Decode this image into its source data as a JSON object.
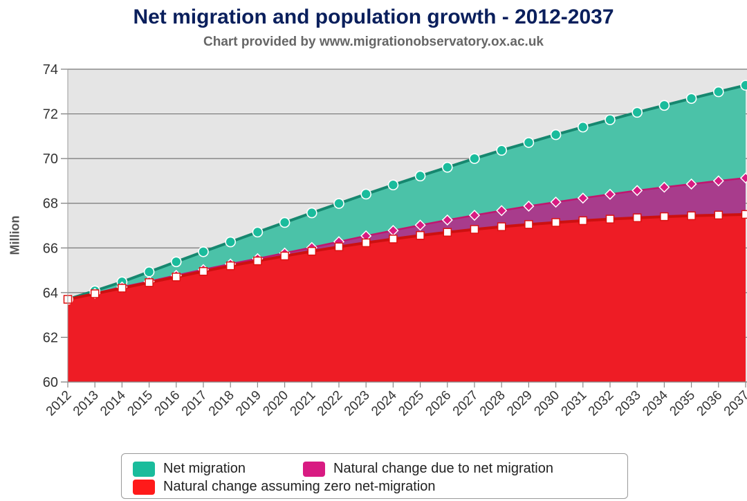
{
  "chart_data": {
    "type": "area",
    "title": "Net migration and population growth - 2012-2037",
    "subtitle": "Chart provided by www.migrationobservatory.ox.ac.uk",
    "xlabel": "",
    "ylabel": "Million",
    "ylim": [
      60,
      74
    ],
    "yticks": [
      60,
      62,
      64,
      66,
      68,
      70,
      72,
      74
    ],
    "grid": true,
    "stacked": true,
    "legend_position": "bottom",
    "categories": [
      "2012",
      "2013",
      "2014",
      "2015",
      "2016",
      "2017",
      "2018",
      "2019",
      "2020",
      "2021",
      "2022",
      "2023",
      "2024",
      "2025",
      "2026",
      "2027",
      "2028",
      "2029",
      "2030",
      "2031",
      "2032",
      "2033",
      "2034",
      "2035",
      "2036",
      "2037"
    ],
    "series": [
      {
        "name": "Natural change assuming zero net-migration",
        "color": "#ee1c25",
        "marker": "square",
        "values": [
          63.7,
          63.95,
          64.2,
          64.45,
          64.7,
          64.95,
          65.2,
          65.42,
          65.64,
          65.85,
          66.05,
          66.23,
          66.4,
          66.56,
          66.7,
          66.83,
          66.95,
          67.05,
          67.14,
          67.22,
          67.29,
          67.35,
          67.4,
          67.44,
          67.47,
          67.5
        ]
      },
      {
        "name": "Natural change due to net migration",
        "color": "#d81b82",
        "marker": "diamond",
        "values": [
          63.7,
          63.97,
          64.25,
          64.5,
          64.77,
          65.03,
          65.28,
          65.52,
          65.77,
          66.02,
          66.28,
          66.54,
          66.78,
          67.02,
          67.25,
          67.46,
          67.67,
          67.87,
          68.05,
          68.23,
          68.4,
          68.57,
          68.72,
          68.86,
          69.0,
          69.13
        ]
      },
      {
        "name": "Net migration",
        "color": "#1abc9c",
        "marker": "circle",
        "values": [
          63.7,
          64.08,
          64.48,
          64.93,
          65.38,
          65.83,
          66.27,
          66.71,
          67.14,
          67.57,
          67.99,
          68.41,
          68.82,
          69.22,
          69.61,
          70.0,
          70.37,
          70.72,
          71.07,
          71.41,
          71.74,
          72.07,
          72.38,
          72.69,
          72.99,
          73.28
        ]
      }
    ],
    "legend": {
      "net_migration": "Net migration",
      "natural_due": "Natural change due to net migration",
      "natural_zero": "Natural change assuming zero net-migration"
    }
  }
}
